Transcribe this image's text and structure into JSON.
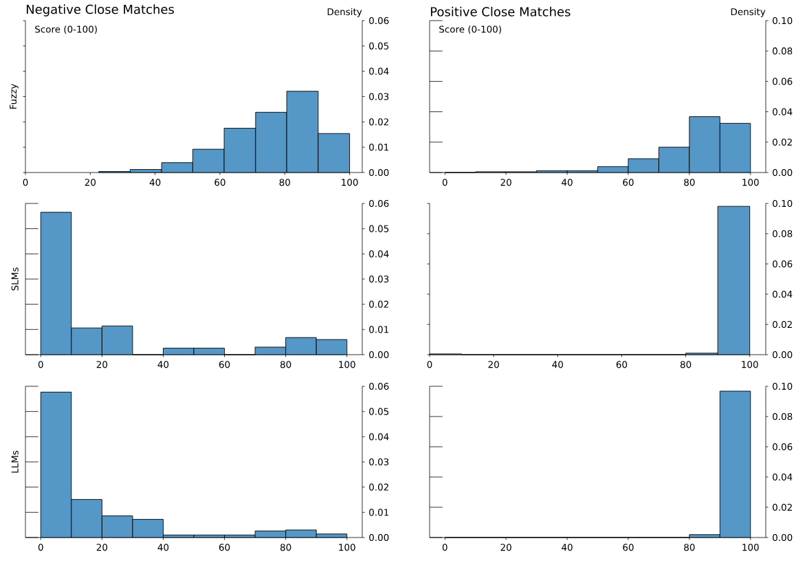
{
  "chart_data": [
    {
      "type": "histogram",
      "title": "Negative Close Matches",
      "xlabel": "Score (0-100)",
      "ylabel": "Density",
      "annotations": [
        "Fuzzy"
      ],
      "color": "#5598c7",
      "bins": [
        22.6,
        32.3,
        42,
        51.6,
        61.3,
        71,
        80.6,
        90.3,
        100
      ],
      "values": [
        0.0004,
        0.0012,
        0.0039,
        0.0092,
        0.0175,
        0.0238,
        0.0321,
        0.0154
      ],
      "xlim": [
        0,
        103.9
      ],
      "xticks": [
        0,
        20,
        40,
        60,
        80,
        100
      ],
      "ylim": [
        0,
        0.06
      ],
      "yticks": [
        {
          "value": 0,
          "label": "0.00"
        },
        {
          "value": 0.01,
          "label": "0.01"
        },
        {
          "value": 0.02,
          "label": "0.02"
        },
        {
          "value": 0.03,
          "label": "0.03"
        },
        {
          "value": 0.04,
          "label": "0.04"
        },
        {
          "value": 0.05,
          "label": "0.05"
        },
        {
          "value": 0.06,
          "label": "0.06"
        }
      ]
    },
    {
      "type": "histogram",
      "title": "Positive Close Matches",
      "xlabel": "Score (0-100)",
      "ylabel": "Density",
      "color": "#5598c7",
      "bins": [
        0,
        10,
        20,
        30,
        40,
        50,
        60,
        70,
        80,
        90,
        100
      ],
      "values": [
        0,
        0.0005,
        0.0005,
        0.0012,
        0.0012,
        0.0039,
        0.0091,
        0.0167,
        0.0368,
        0.0324
      ],
      "xlim": [
        -5,
        105
      ],
      "xticks": [
        0,
        20,
        40,
        60,
        80,
        100
      ],
      "ylim": [
        0,
        0.1
      ],
      "yticks": [
        {
          "value": 0,
          "label": "0.00"
        },
        {
          "value": 0.02,
          "label": "0.02"
        },
        {
          "value": 0.04,
          "label": "0.04"
        },
        {
          "value": 0.06,
          "label": "0.06"
        },
        {
          "value": 0.08,
          "label": "0.08"
        },
        {
          "value": 0.1,
          "label": "0.10"
        }
      ]
    },
    {
      "type": "histogram",
      "annotations": [
        "SLMs"
      ],
      "color": "#5598c7",
      "bins": [
        0,
        10,
        20,
        30,
        40,
        50,
        60,
        70,
        80,
        90,
        100
      ],
      "values": [
        0.0565,
        0.0106,
        0.0114,
        0,
        0.0026,
        0.0026,
        0,
        0.003,
        0.0068,
        0.006
      ],
      "xlim": [
        -5,
        105
      ],
      "xticks": [
        0,
        20,
        40,
        60,
        80,
        100
      ],
      "ylim": [
        0,
        0.06
      ],
      "yticks": [
        {
          "value": 0,
          "label": "0.00"
        },
        {
          "value": 0.01,
          "label": "0.01"
        },
        {
          "value": 0.02,
          "label": "0.02"
        },
        {
          "value": 0.03,
          "label": "0.03"
        },
        {
          "value": 0.04,
          "label": "0.04"
        },
        {
          "value": 0.05,
          "label": "0.05"
        },
        {
          "value": 0.06,
          "label": "0.06"
        }
      ]
    },
    {
      "type": "histogram",
      "color": "#5598c7",
      "bins": [
        0,
        10,
        20,
        30,
        40,
        50,
        60,
        70,
        80,
        90,
        100
      ],
      "values": [
        0.0005,
        0,
        0,
        0,
        0,
        0,
        0,
        0,
        0.001,
        0.0981
      ],
      "xlim": [
        0,
        105
      ],
      "xticks": [
        0,
        20,
        40,
        60,
        80,
        100
      ],
      "ylim": [
        0,
        0.1
      ],
      "yticks": [
        {
          "value": 0,
          "label": "0.00"
        },
        {
          "value": 0.02,
          "label": "0.02"
        },
        {
          "value": 0.04,
          "label": "0.04"
        },
        {
          "value": 0.06,
          "label": "0.06"
        },
        {
          "value": 0.08,
          "label": "0.08"
        },
        {
          "value": 0.1,
          "label": "0.10"
        }
      ]
    },
    {
      "type": "histogram",
      "annotations": [
        "LLMs"
      ],
      "color": "#5598c7",
      "bins": [
        0,
        10,
        20,
        30,
        40,
        50,
        60,
        70,
        80,
        90,
        100
      ],
      "values": [
        0.0577,
        0.0151,
        0.0086,
        0.0072,
        0.001,
        0.001,
        0.001,
        0.0026,
        0.003,
        0.0014
      ],
      "xlim": [
        -5,
        105
      ],
      "xticks": [
        0,
        20,
        40,
        60,
        80,
        100
      ],
      "ylim": [
        0,
        0.06
      ],
      "yticks": [
        {
          "value": 0,
          "label": "0.00"
        },
        {
          "value": 0.01,
          "label": "0.01"
        },
        {
          "value": 0.02,
          "label": "0.02"
        },
        {
          "value": 0.03,
          "label": "0.03"
        },
        {
          "value": 0.04,
          "label": "0.04"
        },
        {
          "value": 0.05,
          "label": "0.05"
        },
        {
          "value": 0.06,
          "label": "0.06"
        }
      ]
    },
    {
      "type": "histogram",
      "color": "#5598c7",
      "bins": [
        0,
        10,
        20,
        30,
        40,
        50,
        60,
        70,
        80,
        90,
        100
      ],
      "values": [
        0,
        0,
        0,
        0,
        0,
        0,
        0,
        0,
        0.0019,
        0.0968
      ],
      "xlim": [
        -5,
        105
      ],
      "xticks": [
        0,
        20,
        40,
        60,
        80,
        100
      ],
      "ylim": [
        0,
        0.1
      ],
      "yticks": [
        {
          "value": 0,
          "label": "0.00"
        },
        {
          "value": 0.02,
          "label": "0.02"
        },
        {
          "value": 0.04,
          "label": "0.04"
        },
        {
          "value": 0.06,
          "label": "0.06"
        },
        {
          "value": 0.08,
          "label": "0.08"
        },
        {
          "value": 0.1,
          "label": "0.10"
        }
      ]
    }
  ]
}
